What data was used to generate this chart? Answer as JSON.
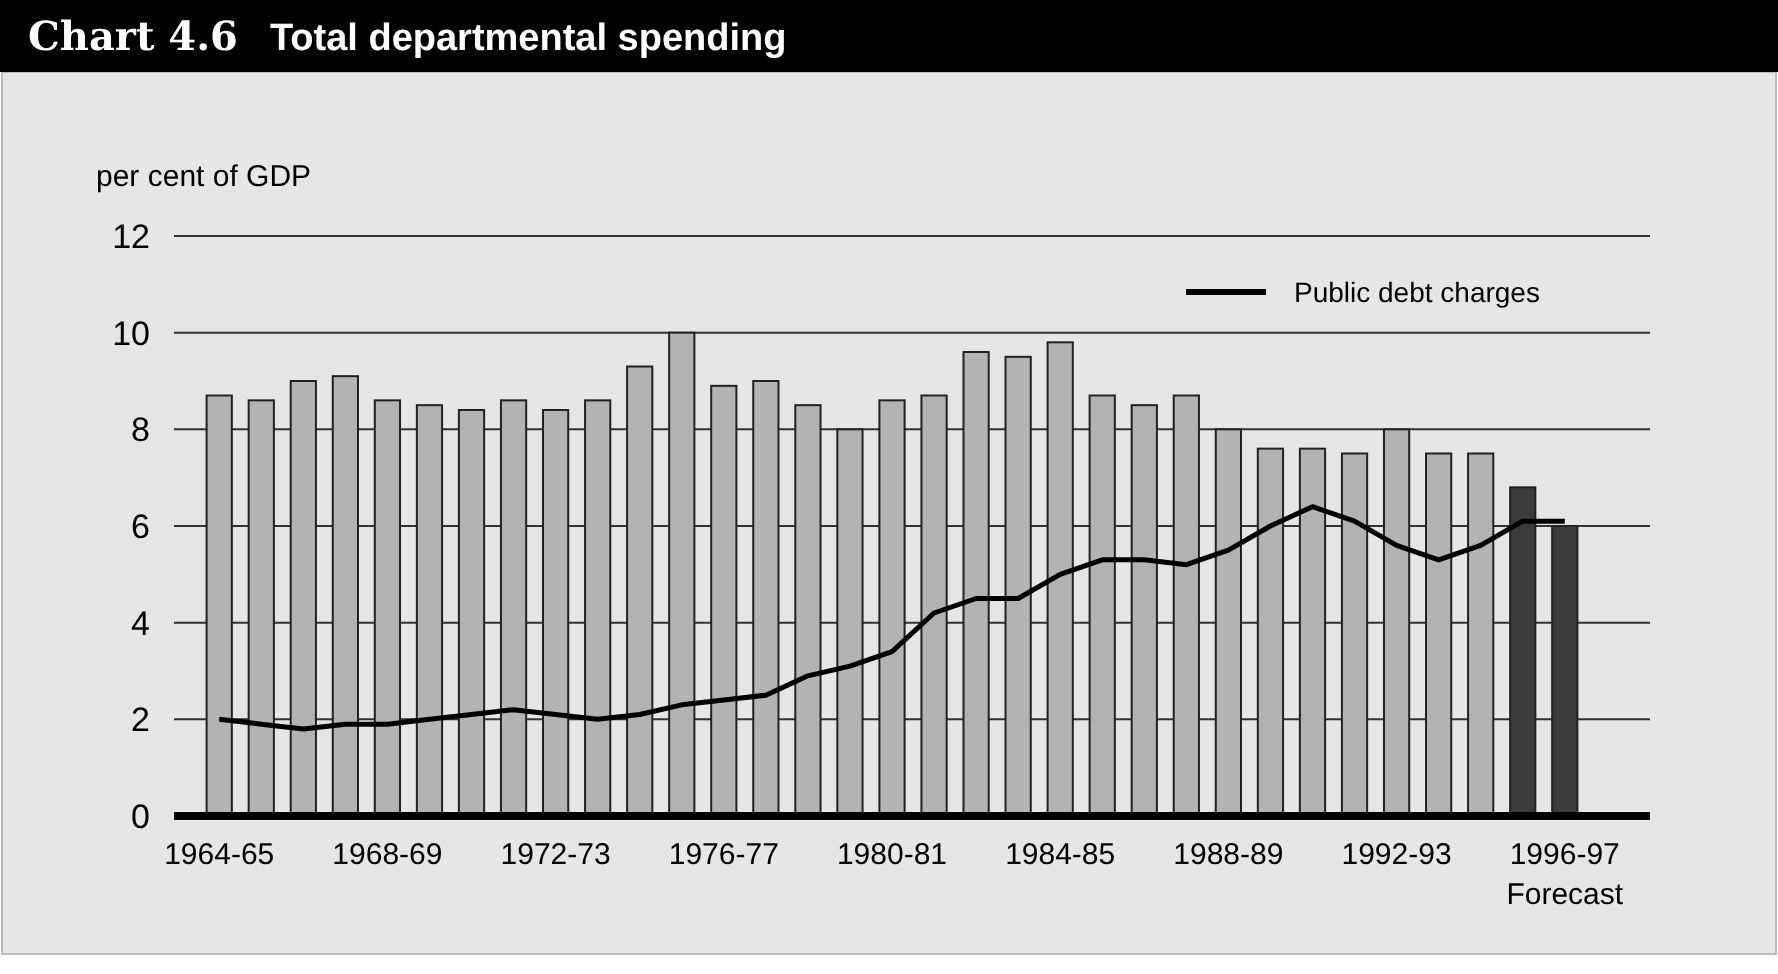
{
  "chart_data": {
    "type": "bar",
    "title": "Chart 4.6",
    "subtitle": "Total departmental spending",
    "ylabel": "per cent of GDP",
    "categories": [
      "1964-65",
      null,
      null,
      null,
      "1968-69",
      null,
      null,
      null,
      "1972-73",
      null,
      null,
      null,
      "1976-77",
      null,
      null,
      null,
      "1980-81",
      null,
      null,
      null,
      "1984-85",
      null,
      null,
      null,
      "1988-89",
      null,
      null,
      null,
      "1992-93",
      null,
      null,
      null,
      "1996-97"
    ],
    "series": [
      {
        "colors": [
          "#b3b3b3",
          "#b3b3b3",
          "#b3b3b3",
          "#b3b3b3",
          "#b3b3b3",
          "#b3b3b3",
          "#b3b3b3",
          "#b3b3b3",
          "#b3b3b3",
          "#b3b3b3",
          "#b3b3b3",
          "#b3b3b3",
          "#b3b3b3",
          "#b3b3b3",
          "#b3b3b3",
          "#b3b3b3",
          "#b3b3b3",
          "#b3b3b3",
          "#b3b3b3",
          "#b3b3b3",
          "#b3b3b3",
          "#b3b3b3",
          "#b3b3b3",
          "#b3b3b3",
          "#b3b3b3",
          "#b3b3b3",
          "#b3b3b3",
          "#b3b3b3",
          "#b3b3b3",
          "#b3b3b3",
          "#b3b3b3",
          "#3c3c3c",
          "#3c3c3c"
        ],
        "values": [
          8.7,
          8.6,
          9.0,
          9.1,
          8.6,
          8.5,
          8.4,
          8.6,
          8.4,
          8.6,
          9.3,
          10.0,
          8.9,
          9.0,
          8.5,
          8.0,
          8.6,
          8.7,
          9.6,
          9.5,
          9.8,
          8.7,
          8.5,
          8.7,
          8.0,
          7.6,
          7.6,
          7.5,
          8.0,
          7.5,
          7.5,
          6.8,
          6.0
        ]
      },
      {
        "type": "line",
        "name": "Public debt charges",
        "color": "#000000",
        "values": [
          2.0,
          1.9,
          1.8,
          1.9,
          1.9,
          2.0,
          2.1,
          2.2,
          2.1,
          2.0,
          2.1,
          2.3,
          2.4,
          2.5,
          2.9,
          3.1,
          3.4,
          4.2,
          4.5,
          4.5,
          5.0,
          5.3,
          5.3,
          5.2,
          5.5,
          6.0,
          6.4,
          6.1,
          5.6,
          5.3,
          5.6,
          6.1,
          6.1
        ]
      }
    ],
    "annotations": [
      "Forecast"
    ],
    "ylim": [
      0,
      12
    ],
    "yticks": [
      0,
      2,
      4,
      6,
      8,
      10,
      12
    ],
    "grid": "y",
    "legend": "top right",
    "marker": "none",
    "line_style": "solid"
  }
}
